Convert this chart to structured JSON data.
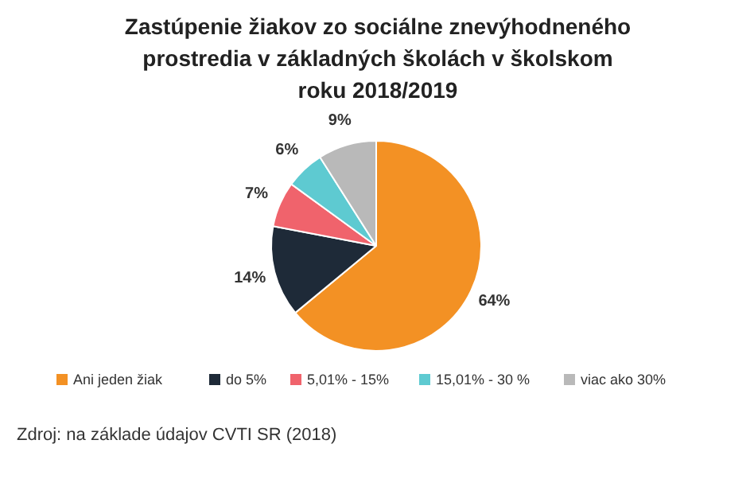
{
  "chart_data": {
    "type": "pie",
    "title": "Zastúpenie žiakov zo sociálne znevýhodneného prostredia v základných školách v školskom roku 2018/2019",
    "categories": [
      "Ani jeden žiak",
      "do 5%",
      "5,01% - 15%",
      "15,01% - 30 %",
      "viac ako 30%"
    ],
    "values": [
      64,
      14,
      7,
      6,
      9
    ],
    "value_labels": [
      "64%",
      "14%",
      "7%",
      "6%",
      "9%"
    ],
    "colors": [
      "#f39124",
      "#1e2a38",
      "#f0636c",
      "#5ecad1",
      "#b9b9b9"
    ],
    "legend": "bottom",
    "annotations": [
      "Zdroj: na základe údajov CVTI SR (2018)"
    ]
  }
}
